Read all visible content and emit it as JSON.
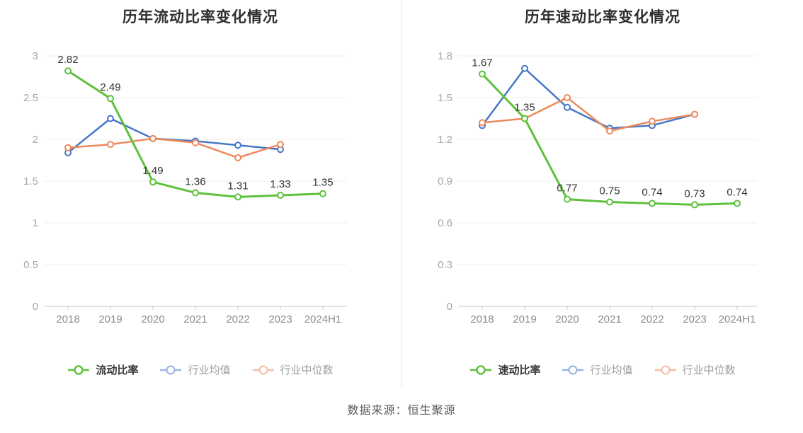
{
  "colors": {
    "company_green": "#5ec13c",
    "industry_avg_blue": "#4678c8",
    "industry_median_orange": "#ec8a5c",
    "gridline": "#ececec",
    "axis_line": "#c9c9c9",
    "y_tick_label": "#a6a6a6",
    "x_tick_label": "#8c8c8c",
    "data_label": "#333333",
    "title_text": "#2f2f2f"
  },
  "footer": {
    "source_text": "数据来源：恒生聚源"
  },
  "chart_data": [
    {
      "type": "line",
      "title": "历年流动比率变化情况",
      "categories": [
        "2018",
        "2019",
        "2020",
        "2021",
        "2022",
        "2023",
        "2024H1"
      ],
      "ylim": [
        0,
        3
      ],
      "yticks": [
        0,
        0.5,
        1,
        1.5,
        2,
        2.5,
        3
      ],
      "grid": true,
      "legend_position": "bottom",
      "series": [
        {
          "name": "流动比率",
          "color": "#5ec13c",
          "show_labels": true,
          "values": [
            2.82,
            2.49,
            1.49,
            1.36,
            1.31,
            1.33,
            1.35
          ]
        },
        {
          "name": "行业均值",
          "color": "#4678c8",
          "show_labels": false,
          "values": [
            1.84,
            2.25,
            2.01,
            1.98,
            1.93,
            1.88
          ]
        },
        {
          "name": "行业中位数",
          "color": "#ec8a5c",
          "show_labels": false,
          "values": [
            1.9,
            1.94,
            2.01,
            1.96,
            1.78,
            1.94
          ]
        }
      ]
    },
    {
      "type": "line",
      "title": "历年速动比率变化情况",
      "categories": [
        "2018",
        "2019",
        "2020",
        "2021",
        "2022",
        "2023",
        "2024H1"
      ],
      "ylim": [
        0,
        1.8
      ],
      "yticks": [
        0,
        0.3,
        0.6,
        0.9,
        1.2,
        1.5,
        1.8
      ],
      "grid": true,
      "legend_position": "bottom",
      "series": [
        {
          "name": "速动比率",
          "color": "#5ec13c",
          "show_labels": true,
          "values": [
            1.67,
            1.35,
            0.77,
            0.75,
            0.74,
            0.73,
            0.74
          ]
        },
        {
          "name": "行业均值",
          "color": "#4678c8",
          "show_labels": false,
          "values": [
            1.3,
            1.71,
            1.43,
            1.28,
            1.3,
            1.38
          ]
        },
        {
          "name": "行业中位数",
          "color": "#ec8a5c",
          "show_labels": false,
          "values": [
            1.32,
            1.35,
            1.5,
            1.26,
            1.33,
            1.38
          ]
        }
      ]
    }
  ]
}
